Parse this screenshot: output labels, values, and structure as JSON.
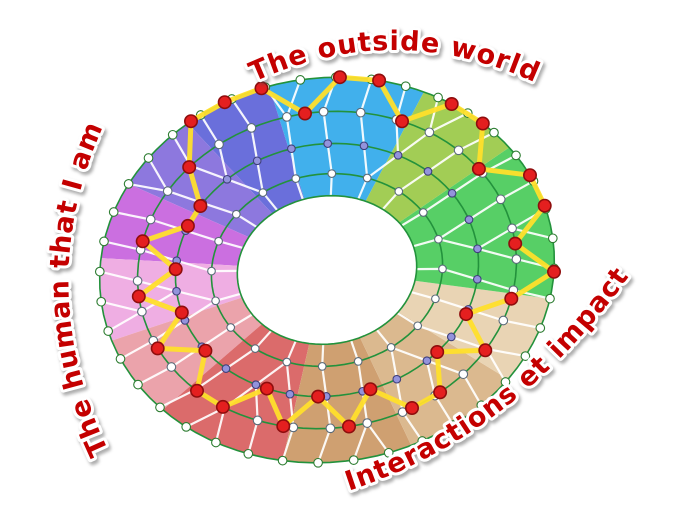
{
  "title": "Coaching wheel diagram",
  "labels": {
    "top": "The outside world",
    "left": "The human that I am",
    "bottom_right": "Interactions et impact"
  },
  "palette": {
    "label_text": "#c40000",
    "label_halo": "#ffffff",
    "ring_line": "#23923c",
    "mesh_line": "#ffffff",
    "path_highlight": "#ffdf2b",
    "node_highlight_fill": "#e41f1f",
    "node_highlight_stroke": "#8f0d0d",
    "node_outer_fill": "#ffffff",
    "node_mid_fill": "#ffffff",
    "node_third_fill": "#9393dc",
    "node_inner_fill": "#ffffff",
    "hole_fill": "#ffffff"
  },
  "wheel": {
    "sectors": [
      {
        "name": "sky-blue",
        "from": 58,
        "to": 98,
        "color": "#41b0ec"
      },
      {
        "name": "blue-violet",
        "from": 98,
        "to": 121,
        "color": "#6a6fdb"
      },
      {
        "name": "purple",
        "from": 121,
        "to": 144,
        "color": "#8d78de"
      },
      {
        "name": "orchid",
        "from": 144,
        "to": 167,
        "color": "#cb6fe0"
      },
      {
        "name": "light-pink",
        "from": 167,
        "to": 192,
        "color": "#efaee3"
      },
      {
        "name": "rose",
        "from": 192,
        "to": 217,
        "color": "#eba3ab"
      },
      {
        "name": "red",
        "from": 217,
        "to": 252,
        "color": "#db6b6b"
      },
      {
        "name": "dark-tan",
        "from": 252,
        "to": 285,
        "color": "#cfa071"
      },
      {
        "name": "tan",
        "from": 285,
        "to": 316,
        "color": "#dbb98f"
      },
      {
        "name": "light-tan",
        "from": 316,
        "to": 342,
        "color": "#e9d4b4"
      },
      {
        "name": "green",
        "from": 342,
        "to": 390,
        "color": "#57cf66"
      },
      {
        "name": "olive-green",
        "from": 390,
        "to": 418,
        "color": "#a2cd55"
      }
    ],
    "rings": [
      {
        "id": "A",
        "name": "outer-ring",
        "nodes": 40
      },
      {
        "id": "B",
        "name": "second-ring",
        "nodes": 32
      },
      {
        "id": "C",
        "name": "third-ring",
        "nodes": 26
      },
      {
        "id": "D",
        "name": "inner-ring",
        "nodes": 20
      }
    ],
    "profile": [
      {
        "angle": 130,
        "ring": "B"
      },
      {
        "angle": 120,
        "ring": "A"
      },
      {
        "angle": 110,
        "ring": "A"
      },
      {
        "angle": 100,
        "ring": "A"
      },
      {
        "angle": 90,
        "ring": "B"
      },
      {
        "angle": 80,
        "ring": "A"
      },
      {
        "angle": 70,
        "ring": "A"
      },
      {
        "angle": 60,
        "ring": "B"
      },
      {
        "angle": 50,
        "ring": "A"
      },
      {
        "angle": 40,
        "ring": "A"
      },
      {
        "angle": 30,
        "ring": "B"
      },
      {
        "angle": 20,
        "ring": "A"
      },
      {
        "angle": 10,
        "ring": "A"
      },
      {
        "angle": 0,
        "ring": "B"
      },
      {
        "angle": -10,
        "ring": "A"
      },
      {
        "angle": -20,
        "ring": "B"
      },
      {
        "angle": -30,
        "ring": "C"
      },
      {
        "angle": -40,
        "ring": "B"
      },
      {
        "angle": -50,
        "ring": "C"
      },
      {
        "angle": -60,
        "ring": "B"
      },
      {
        "angle": -70,
        "ring": "B"
      },
      {
        "angle": -80,
        "ring": "C"
      },
      {
        "angle": -90,
        "ring": "B"
      },
      {
        "angle": -100,
        "ring": "C"
      },
      {
        "angle": -110,
        "ring": "B"
      },
      {
        "angle": -120,
        "ring": "C"
      },
      {
        "angle": -130,
        "ring": "B"
      },
      {
        "angle": -140,
        "ring": "B"
      },
      {
        "angle": -150,
        "ring": "C"
      },
      {
        "angle": -160,
        "ring": "B"
      },
      {
        "angle": -170,
        "ring": "C"
      },
      {
        "angle": -180,
        "ring": "B"
      },
      {
        "angle": -190,
        "ring": "C"
      },
      {
        "angle": -200,
        "ring": "B"
      },
      {
        "angle": -210,
        "ring": "C"
      },
      {
        "angle": -220,
        "ring": "C"
      }
    ]
  }
}
